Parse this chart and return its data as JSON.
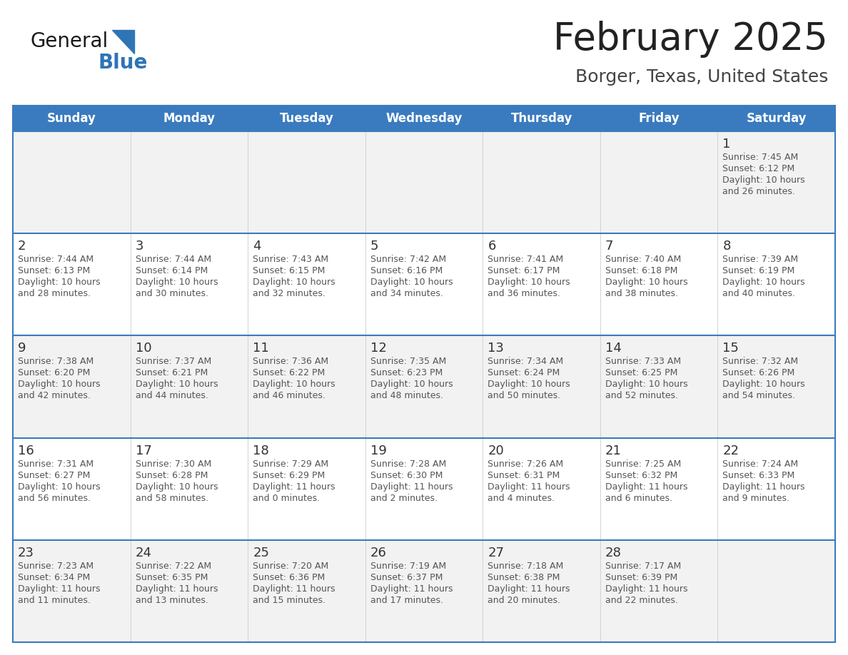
{
  "title": "February 2025",
  "subtitle": "Borger, Texas, United States",
  "header_bg_color": "#3a7bbf",
  "header_text_color": "#ffffff",
  "day_names": [
    "Sunday",
    "Monday",
    "Tuesday",
    "Wednesday",
    "Thursday",
    "Friday",
    "Saturday"
  ],
  "row_bg_even": "#f2f2f2",
  "row_bg_odd": "#ffffff",
  "cell_border_color": "#3a7bbf",
  "cell_divider_color": "#cccccc",
  "title_color": "#222222",
  "subtitle_color": "#444444",
  "day_num_color": "#333333",
  "info_color": "#555555",
  "logo_general_color": "#1a1a1a",
  "logo_blue_color": "#2e75b6",
  "weeks": [
    [
      null,
      null,
      null,
      null,
      null,
      null,
      1
    ],
    [
      2,
      3,
      4,
      5,
      6,
      7,
      8
    ],
    [
      9,
      10,
      11,
      12,
      13,
      14,
      15
    ],
    [
      16,
      17,
      18,
      19,
      20,
      21,
      22
    ],
    [
      23,
      24,
      25,
      26,
      27,
      28,
      null
    ]
  ],
  "day_data": {
    "1": {
      "sunrise": "7:45 AM",
      "sunset": "6:12 PM",
      "daylight": "10 hours and 26 minutes."
    },
    "2": {
      "sunrise": "7:44 AM",
      "sunset": "6:13 PM",
      "daylight": "10 hours and 28 minutes."
    },
    "3": {
      "sunrise": "7:44 AM",
      "sunset": "6:14 PM",
      "daylight": "10 hours and 30 minutes."
    },
    "4": {
      "sunrise": "7:43 AM",
      "sunset": "6:15 PM",
      "daylight": "10 hours and 32 minutes."
    },
    "5": {
      "sunrise": "7:42 AM",
      "sunset": "6:16 PM",
      "daylight": "10 hours and 34 minutes."
    },
    "6": {
      "sunrise": "7:41 AM",
      "sunset": "6:17 PM",
      "daylight": "10 hours and 36 minutes."
    },
    "7": {
      "sunrise": "7:40 AM",
      "sunset": "6:18 PM",
      "daylight": "10 hours and 38 minutes."
    },
    "8": {
      "sunrise": "7:39 AM",
      "sunset": "6:19 PM",
      "daylight": "10 hours and 40 minutes."
    },
    "9": {
      "sunrise": "7:38 AM",
      "sunset": "6:20 PM",
      "daylight": "10 hours and 42 minutes."
    },
    "10": {
      "sunrise": "7:37 AM",
      "sunset": "6:21 PM",
      "daylight": "10 hours and 44 minutes."
    },
    "11": {
      "sunrise": "7:36 AM",
      "sunset": "6:22 PM",
      "daylight": "10 hours and 46 minutes."
    },
    "12": {
      "sunrise": "7:35 AM",
      "sunset": "6:23 PM",
      "daylight": "10 hours and 48 minutes."
    },
    "13": {
      "sunrise": "7:34 AM",
      "sunset": "6:24 PM",
      "daylight": "10 hours and 50 minutes."
    },
    "14": {
      "sunrise": "7:33 AM",
      "sunset": "6:25 PM",
      "daylight": "10 hours and 52 minutes."
    },
    "15": {
      "sunrise": "7:32 AM",
      "sunset": "6:26 PM",
      "daylight": "10 hours and 54 minutes."
    },
    "16": {
      "sunrise": "7:31 AM",
      "sunset": "6:27 PM",
      "daylight": "10 hours and 56 minutes."
    },
    "17": {
      "sunrise": "7:30 AM",
      "sunset": "6:28 PM",
      "daylight": "10 hours and 58 minutes."
    },
    "18": {
      "sunrise": "7:29 AM",
      "sunset": "6:29 PM",
      "daylight": "11 hours and 0 minutes."
    },
    "19": {
      "sunrise": "7:28 AM",
      "sunset": "6:30 PM",
      "daylight": "11 hours and 2 minutes."
    },
    "20": {
      "sunrise": "7:26 AM",
      "sunset": "6:31 PM",
      "daylight": "11 hours and 4 minutes."
    },
    "21": {
      "sunrise": "7:25 AM",
      "sunset": "6:32 PM",
      "daylight": "11 hours and 6 minutes."
    },
    "22": {
      "sunrise": "7:24 AM",
      "sunset": "6:33 PM",
      "daylight": "11 hours and 9 minutes."
    },
    "23": {
      "sunrise": "7:23 AM",
      "sunset": "6:34 PM",
      "daylight": "11 hours and 11 minutes."
    },
    "24": {
      "sunrise": "7:22 AM",
      "sunset": "6:35 PM",
      "daylight": "11 hours and 13 minutes."
    },
    "25": {
      "sunrise": "7:20 AM",
      "sunset": "6:36 PM",
      "daylight": "11 hours and 15 minutes."
    },
    "26": {
      "sunrise": "7:19 AM",
      "sunset": "6:37 PM",
      "daylight": "11 hours and 17 minutes."
    },
    "27": {
      "sunrise": "7:18 AM",
      "sunset": "6:38 PM",
      "daylight": "11 hours and 20 minutes."
    },
    "28": {
      "sunrise": "7:17 AM",
      "sunset": "6:39 PM",
      "daylight": "11 hours and 22 minutes."
    }
  }
}
